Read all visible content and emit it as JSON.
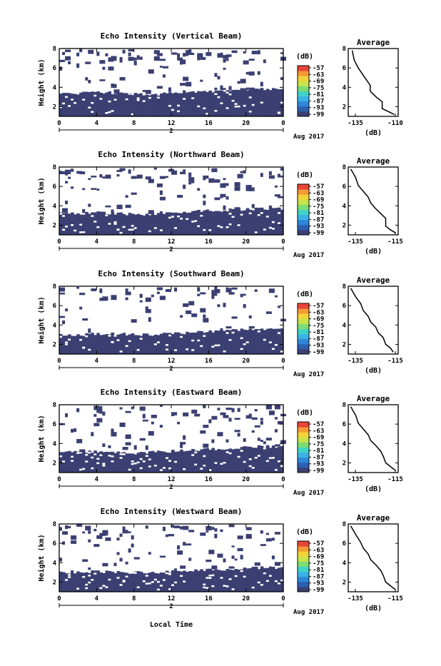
{
  "colors": {
    "echo_fill": "#3b3f72",
    "colorbar": [
      "#3b3f72",
      "#2c5fb0",
      "#2f86d6",
      "#39b3e6",
      "#3fd3c6",
      "#7ddc74",
      "#c9e34b",
      "#f2d43a",
      "#f59a35",
      "#e8453a"
    ]
  },
  "panels": [
    {
      "title": "Echo Intensity (Vertical Beam)",
      "avg_title": "Average",
      "avg_xlabel": "(dB)"
    },
    {
      "title": "Echo Intensity (Northward Beam)",
      "avg_title": "Average",
      "avg_xlabel": "(dB)"
    },
    {
      "title": "Echo Intensity (Southward Beam)",
      "avg_title": "Average",
      "avg_xlabel": "(dB)"
    },
    {
      "title": "Echo Intensity (Eastward Beam)",
      "avg_title": "Average",
      "avg_xlabel": "(dB)"
    },
    {
      "title": "Echo Intensity (Westward Beam)",
      "avg_title": "Average",
      "avg_xlabel": "(dB)"
    }
  ],
  "shared": {
    "ylabel": "Height (km)",
    "x_ticks": [
      "0",
      "4",
      "8",
      "12",
      "16",
      "20",
      "0"
    ],
    "day_label": "2",
    "month_label": "Aug 2017",
    "colorbar_unit": "(dB)",
    "colorbar_labels": [
      "-57",
      "-63",
      "-69",
      "-75",
      "-81",
      "-87",
      "-93",
      "-99"
    ],
    "y_ticks": [
      "2",
      "4",
      "6",
      "8"
    ],
    "xlabel_bottom": "Local Time"
  },
  "chart_data": [
    {
      "type": "heatmap",
      "title": "Echo Intensity (Vertical Beam)",
      "xlabel": "",
      "ylabel": "Height (km)",
      "xlim": [
        0,
        24
      ],
      "ylim": [
        1,
        8
      ],
      "x_tick_labels": [
        "0",
        "4",
        "8",
        "12",
        "16",
        "20",
        "0"
      ],
      "colorbar": {
        "unit": "(dB)",
        "ticks": [
          -57,
          -63,
          -69,
          -75,
          -81,
          -87,
          -93,
          -99
        ]
      },
      "lower_layer_top_km": [
        3.3,
        3.4,
        3.5,
        3.4,
        3.3,
        3.2,
        3.4,
        3.5,
        3.6,
        3.7,
        3.8,
        3.8,
        3.8
      ]
    },
    {
      "type": "line",
      "title": "Average",
      "xlabel": "(dB)",
      "xlim": [
        -135,
        -110
      ],
      "ylim": [
        1,
        8
      ],
      "x_tick_labels": [
        "-135",
        "-110"
      ],
      "x": [
        -112,
        -115,
        -118,
        -118,
        -121,
        -124,
        -124,
        -126,
        -128,
        -130,
        -132,
        -133
      ],
      "y": [
        1.2,
        1.5,
        1.8,
        2.5,
        3.0,
        3.6,
        4.2,
        4.8,
        5.4,
        6.0,
        6.8,
        7.8
      ]
    },
    {
      "type": "heatmap",
      "title": "Echo Intensity (Northward Beam)",
      "xlabel": "",
      "ylabel": "Height (km)",
      "xlim": [
        0,
        24
      ],
      "ylim": [
        1,
        8
      ],
      "x_tick_labels": [
        "0",
        "4",
        "8",
        "12",
        "16",
        "20",
        "0"
      ],
      "colorbar": {
        "unit": "(dB)",
        "ticks": [
          -57,
          -63,
          -69,
          -75,
          -81,
          -87,
          -93,
          -99
        ]
      },
      "lower_layer_top_km": [
        3.2,
        3.2,
        3.3,
        3.2,
        3.1,
        3.1,
        3.3,
        3.4,
        3.5,
        3.5,
        3.6,
        3.7,
        3.7
      ]
    },
    {
      "type": "line",
      "title": "Average",
      "xlabel": "(dB)",
      "xlim": [
        -135,
        -115
      ],
      "ylim": [
        1,
        8
      ],
      "x_tick_labels": [
        "-135",
        "-115"
      ],
      "x": [
        -116,
        -118,
        -120,
        -120,
        -122,
        -124,
        -126,
        -127,
        -129,
        -131,
        -132,
        -134
      ],
      "y": [
        1.2,
        1.5,
        1.9,
        2.7,
        3.2,
        3.7,
        4.3,
        4.9,
        5.5,
        6.1,
        6.9,
        7.8
      ]
    },
    {
      "type": "heatmap",
      "title": "Echo Intensity (Southward Beam)",
      "xlabel": "",
      "ylabel": "Height (km)",
      "xlim": [
        0,
        24
      ],
      "ylim": [
        1,
        8
      ],
      "x_tick_labels": [
        "0",
        "4",
        "8",
        "12",
        "16",
        "20",
        "0"
      ],
      "colorbar": {
        "unit": "(dB)",
        "ticks": [
          -57,
          -63,
          -69,
          -75,
          -81,
          -87,
          -93,
          -99
        ]
      },
      "lower_layer_top_km": [
        3.0,
        3.0,
        3.1,
        3.1,
        3.0,
        3.0,
        3.1,
        3.2,
        3.3,
        3.4,
        3.5,
        3.6,
        3.6
      ]
    },
    {
      "type": "line",
      "title": "Average",
      "xlabel": "(dB)",
      "xlim": [
        -135,
        -115
      ],
      "ylim": [
        1,
        8
      ],
      "x_tick_labels": [
        "-135",
        "-115"
      ],
      "x": [
        -117,
        -118,
        -120,
        -121,
        -123,
        -124,
        -126,
        -127,
        -129,
        -130,
        -132,
        -134
      ],
      "y": [
        1.2,
        1.6,
        2.0,
        2.7,
        3.2,
        3.8,
        4.3,
        4.9,
        5.5,
        6.2,
        6.9,
        7.8
      ]
    },
    {
      "type": "heatmap",
      "title": "Echo Intensity (Eastward Beam)",
      "xlabel": "",
      "ylabel": "Height (km)",
      "xlim": [
        0,
        24
      ],
      "ylim": [
        1,
        8
      ],
      "x_tick_labels": [
        "0",
        "4",
        "8",
        "12",
        "16",
        "20",
        "0"
      ],
      "colorbar": {
        "unit": "(dB)",
        "ticks": [
          -57,
          -63,
          -69,
          -75,
          -81,
          -87,
          -93,
          -99
        ]
      },
      "lower_layer_top_km": [
        3.1,
        3.1,
        3.2,
        3.1,
        3.0,
        3.1,
        3.2,
        3.3,
        3.4,
        3.5,
        3.6,
        3.7,
        3.7
      ]
    },
    {
      "type": "line",
      "title": "Average",
      "xlabel": "(dB)",
      "xlim": [
        -135,
        -115
      ],
      "ylim": [
        1,
        8
      ],
      "x_tick_labels": [
        "-135",
        "-115"
      ],
      "x": [
        -116,
        -118,
        -120,
        -121,
        -122,
        -124,
        -126,
        -127,
        -129,
        -131,
        -132,
        -134
      ],
      "y": [
        1.2,
        1.6,
        2.0,
        2.7,
        3.2,
        3.8,
        4.3,
        4.9,
        5.5,
        6.1,
        6.9,
        7.8
      ]
    },
    {
      "type": "heatmap",
      "title": "Echo Intensity (Westward Beam)",
      "xlabel": "Local Time",
      "ylabel": "Height (km)",
      "xlim": [
        0,
        24
      ],
      "ylim": [
        1,
        8
      ],
      "x_tick_labels": [
        "0",
        "4",
        "8",
        "12",
        "16",
        "20",
        "0"
      ],
      "colorbar": {
        "unit": "(dB)",
        "ticks": [
          -57,
          -63,
          -69,
          -75,
          -81,
          -87,
          -93,
          -99
        ]
      },
      "lower_layer_top_km": [
        3.0,
        3.0,
        3.1,
        3.0,
        3.0,
        3.0,
        3.1,
        3.2,
        3.3,
        3.3,
        3.4,
        3.5,
        3.5
      ]
    },
    {
      "type": "line",
      "title": "Average",
      "xlabel": "(dB)",
      "xlim": [
        -135,
        -115
      ],
      "ylim": [
        1,
        8
      ],
      "x_tick_labels": [
        "-135",
        "-115"
      ],
      "x": [
        -116,
        -118,
        -120,
        -121,
        -122,
        -124,
        -126,
        -127,
        -129,
        -130,
        -132,
        -134
      ],
      "y": [
        1.2,
        1.6,
        2.0,
        2.7,
        3.2,
        3.8,
        4.3,
        4.9,
        5.5,
        6.1,
        6.9,
        7.8
      ]
    }
  ]
}
